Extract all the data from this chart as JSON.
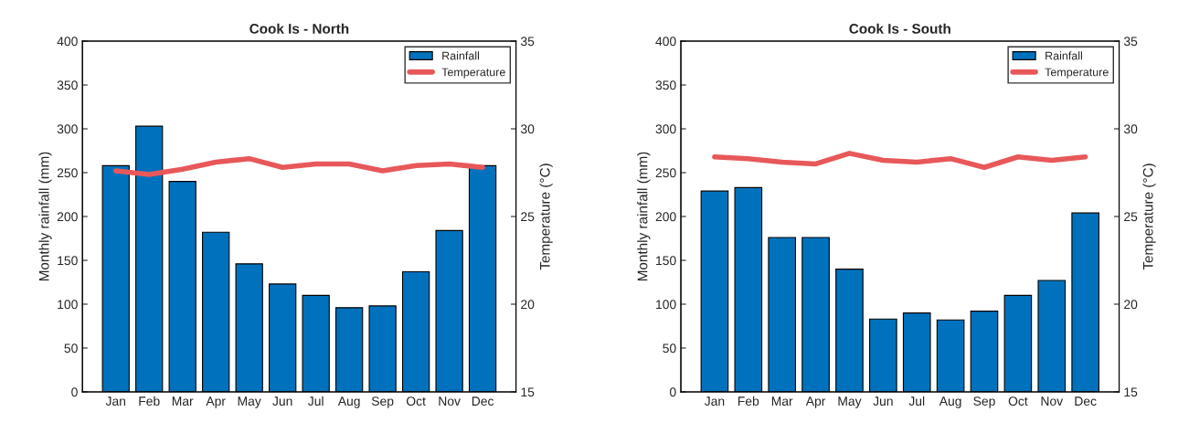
{
  "chart_data": [
    {
      "type": "bar",
      "title": "Cook Is - North",
      "ylabel": "Monthly rainfall (mm)",
      "y2label": "Temperature (°C)",
      "categories": [
        "Jan",
        "Feb",
        "Mar",
        "Apr",
        "May",
        "Jun",
        "Jul",
        "Aug",
        "Sep",
        "Oct",
        "Nov",
        "Dec"
      ],
      "series": [
        {
          "name": "Rainfall",
          "color": "#0072bd",
          "values": [
            258,
            303,
            240,
            182,
            146,
            123,
            110,
            96,
            98,
            137,
            184,
            258
          ]
        },
        {
          "name": "Temperature",
          "type": "line",
          "axis": "y2",
          "color": "#e8585a",
          "values": [
            27.6,
            27.4,
            27.7,
            28.1,
            28.3,
            27.8,
            28.0,
            28.0,
            27.6,
            27.9,
            28.0,
            27.8
          ]
        }
      ],
      "ylim": [
        0,
        400
      ],
      "yticks": [
        0,
        50,
        100,
        150,
        200,
        250,
        300,
        350,
        400
      ],
      "y2lim": [
        15,
        35
      ],
      "y2ticks": [
        15,
        20,
        25,
        30,
        35
      ],
      "legend": "top right",
      "grid": false
    },
    {
      "type": "bar",
      "title": "Cook Is - South",
      "ylabel": "Monthly rainfall (mm)",
      "y2label": "Temperature (°C)",
      "categories": [
        "Jan",
        "Feb",
        "Mar",
        "Apr",
        "May",
        "Jun",
        "Jul",
        "Aug",
        "Sep",
        "Oct",
        "Nov",
        "Dec"
      ],
      "series": [
        {
          "name": "Rainfall",
          "color": "#0072bd",
          "values": [
            229,
            233,
            176,
            176,
            140,
            83,
            90,
            82,
            92,
            110,
            127,
            204
          ]
        },
        {
          "name": "Temperature",
          "type": "line",
          "axis": "y2",
          "color": "#e8585a",
          "values": [
            28.4,
            28.3,
            28.1,
            28.0,
            28.6,
            28.2,
            28.1,
            28.3,
            27.8,
            28.4,
            28.2,
            28.4
          ]
        }
      ],
      "ylim": [
        0,
        400
      ],
      "yticks": [
        0,
        50,
        100,
        150,
        200,
        250,
        300,
        350,
        400
      ],
      "y2lim": [
        15,
        35
      ],
      "y2ticks": [
        15,
        20,
        25,
        30,
        35
      ],
      "legend": "top right",
      "grid": false
    }
  ]
}
